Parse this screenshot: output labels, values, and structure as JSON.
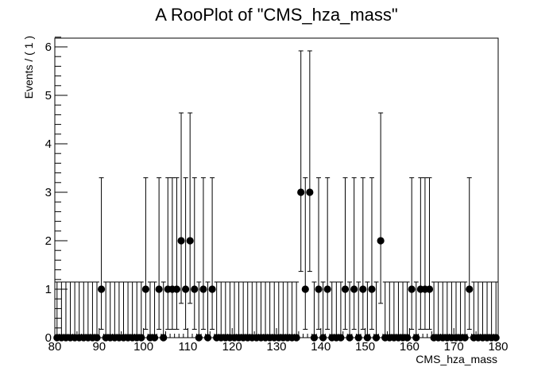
{
  "chart_data": {
    "type": "scatter",
    "title": "A RooPlot of \"CMS_hza_mass\"",
    "xlabel": "CMS_hza_mass",
    "ylabel": "Events / ( 1 )",
    "xlim": [
      80,
      180
    ],
    "ylim": [
      0,
      6.2
    ],
    "x_ticks": [
      "80",
      "90",
      "100",
      "110",
      "120",
      "130",
      "140",
      "150",
      "160",
      "170",
      "180"
    ],
    "y_ticks": [
      "0",
      "1",
      "2",
      "3",
      "4",
      "5",
      "6"
    ],
    "bin_width": 1,
    "grid": false,
    "error_bars": "poisson",
    "x": [
      80.5,
      81.5,
      82.5,
      83.5,
      84.5,
      85.5,
      86.5,
      87.5,
      88.5,
      89.5,
      90.5,
      91.5,
      92.5,
      93.5,
      94.5,
      95.5,
      96.5,
      97.5,
      98.5,
      99.5,
      100.5,
      101.5,
      102.5,
      103.5,
      104.5,
      105.5,
      106.5,
      107.5,
      108.5,
      109.5,
      110.5,
      111.5,
      112.5,
      113.5,
      114.5,
      115.5,
      116.5,
      117.5,
      118.5,
      119.5,
      120.5,
      121.5,
      122.5,
      123.5,
      124.5,
      125.5,
      126.5,
      127.5,
      128.5,
      129.5,
      130.5,
      131.5,
      132.5,
      133.5,
      134.5,
      135.5,
      136.5,
      137.5,
      138.5,
      139.5,
      140.5,
      141.5,
      142.5,
      143.5,
      144.5,
      145.5,
      146.5,
      147.5,
      148.5,
      149.5,
      150.5,
      151.5,
      152.5,
      153.5,
      154.5,
      155.5,
      156.5,
      157.5,
      158.5,
      159.5,
      160.5,
      161.5,
      162.5,
      163.5,
      164.5,
      165.5,
      166.5,
      167.5,
      168.5,
      169.5,
      170.5,
      171.5,
      172.5,
      173.5,
      174.5,
      175.5,
      176.5,
      177.5,
      178.5,
      179.5
    ],
    "values": [
      0,
      0,
      0,
      0,
      0,
      0,
      0,
      0,
      0,
      0,
      1,
      0,
      0,
      0,
      0,
      0,
      0,
      0,
      0,
      0,
      1,
      0,
      0,
      1,
      0,
      1,
      1,
      1,
      2,
      1,
      2,
      1,
      0,
      1,
      0,
      1,
      0,
      0,
      0,
      0,
      0,
      0,
      0,
      0,
      0,
      0,
      0,
      0,
      0,
      0,
      0,
      0,
      0,
      0,
      0,
      3,
      1,
      3,
      0,
      1,
      0,
      1,
      0,
      0,
      0,
      1,
      0,
      1,
      0,
      1,
      0,
      1,
      0,
      2,
      0,
      0,
      0,
      0,
      0,
      0,
      1,
      0,
      1,
      1,
      1,
      0,
      0,
      0,
      0,
      0,
      0,
      0,
      0,
      1,
      0,
      0,
      0,
      0,
      0,
      0
    ]
  }
}
